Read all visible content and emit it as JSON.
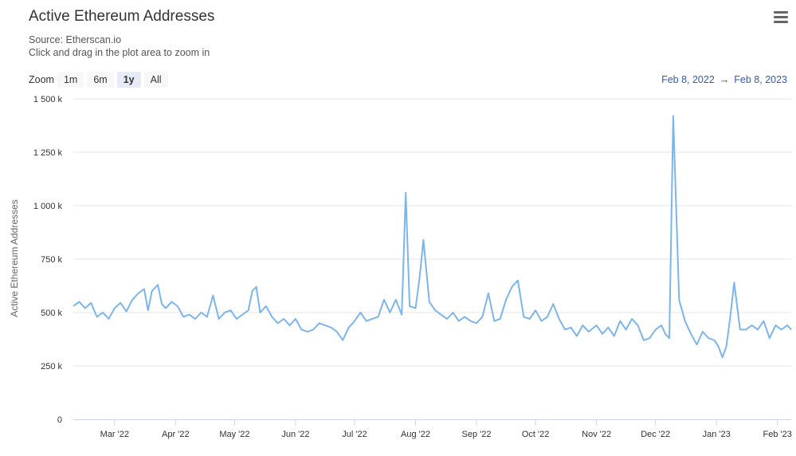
{
  "header": {
    "title": "Active Ethereum Addresses",
    "source": "Source: Etherscan.io",
    "hint": "Click and drag in the plot area to zoom in",
    "menu_icon": "hamburger-menu-icon"
  },
  "zoom": {
    "label": "Zoom",
    "buttons": [
      "1m",
      "6m",
      "1y",
      "All"
    ],
    "active": "1y"
  },
  "range": {
    "from": "Feb 8, 2022",
    "arrow": "→",
    "to": "Feb 8, 2023"
  },
  "colors": {
    "line": "#7cb5ec",
    "grid": "#e6e6e6",
    "axis": "#ccd6eb"
  },
  "chart_data": {
    "type": "line",
    "ylabel": "Active Ethereum Addresses",
    "ylim": [
      0,
      1500000
    ],
    "xlim": [
      "2022-02-08",
      "2023-02-08"
    ],
    "y_ticks": [
      {
        "value": 0,
        "label": "0"
      },
      {
        "value": 250000,
        "label": "250 k"
      },
      {
        "value": 500000,
        "label": "500 k"
      },
      {
        "value": 750000,
        "label": "750 k"
      },
      {
        "value": 1000000,
        "label": "1 000 k"
      },
      {
        "value": 1250000,
        "label": "1 250 k"
      },
      {
        "value": 1500000,
        "label": "1 500 k"
      }
    ],
    "x_ticks": [
      {
        "date": "2022-03-01",
        "label": "Mar '22"
      },
      {
        "date": "2022-04-01",
        "label": "Apr '22"
      },
      {
        "date": "2022-05-01",
        "label": "May '22"
      },
      {
        "date": "2022-06-01",
        "label": "Jun '22"
      },
      {
        "date": "2022-07-01",
        "label": "Jul '22"
      },
      {
        "date": "2022-08-01",
        "label": "Aug '22"
      },
      {
        "date": "2022-09-01",
        "label": "Sep '22"
      },
      {
        "date": "2022-10-01",
        "label": "Oct '22"
      },
      {
        "date": "2022-11-01",
        "label": "Nov '22"
      },
      {
        "date": "2022-12-01",
        "label": "Dec '22"
      },
      {
        "date": "2023-01-01",
        "label": "Jan '23"
      },
      {
        "date": "2023-02-01",
        "label": "Feb '23"
      }
    ],
    "series": [
      {
        "x": [
          "2022-02-08",
          "2022-02-11",
          "2022-02-14",
          "2022-02-17",
          "2022-02-20",
          "2022-02-23",
          "2022-02-26",
          "2022-03-01",
          "2022-03-04",
          "2022-03-07",
          "2022-03-10",
          "2022-03-13",
          "2022-03-16",
          "2022-03-18",
          "2022-03-20",
          "2022-03-23",
          "2022-03-25",
          "2022-03-27",
          "2022-03-30",
          "2022-04-02",
          "2022-04-05",
          "2022-04-08",
          "2022-04-11",
          "2022-04-14",
          "2022-04-17",
          "2022-04-20",
          "2022-04-23",
          "2022-04-26",
          "2022-04-29",
          "2022-05-02",
          "2022-05-05",
          "2022-05-08",
          "2022-05-10",
          "2022-05-12",
          "2022-05-14",
          "2022-05-17",
          "2022-05-20",
          "2022-05-23",
          "2022-05-26",
          "2022-05-29",
          "2022-06-01",
          "2022-06-04",
          "2022-06-07",
          "2022-06-10",
          "2022-06-13",
          "2022-06-16",
          "2022-06-19",
          "2022-06-22",
          "2022-06-25",
          "2022-06-28",
          "2022-07-01",
          "2022-07-04",
          "2022-07-07",
          "2022-07-10",
          "2022-07-13",
          "2022-07-16",
          "2022-07-19",
          "2022-07-22",
          "2022-07-25",
          "2022-07-27",
          "2022-07-29",
          "2022-08-01",
          "2022-08-03",
          "2022-08-05",
          "2022-08-08",
          "2022-08-11",
          "2022-08-14",
          "2022-08-17",
          "2022-08-20",
          "2022-08-23",
          "2022-08-26",
          "2022-08-29",
          "2022-09-01",
          "2022-09-04",
          "2022-09-07",
          "2022-09-10",
          "2022-09-13",
          "2022-09-16",
          "2022-09-19",
          "2022-09-22",
          "2022-09-25",
          "2022-09-28",
          "2022-10-01",
          "2022-10-04",
          "2022-10-07",
          "2022-10-10",
          "2022-10-13",
          "2022-10-16",
          "2022-10-19",
          "2022-10-22",
          "2022-10-25",
          "2022-10-28",
          "2022-11-01",
          "2022-11-04",
          "2022-11-07",
          "2022-11-10",
          "2022-11-13",
          "2022-11-16",
          "2022-11-19",
          "2022-11-22",
          "2022-11-25",
          "2022-11-28",
          "2022-12-01",
          "2022-12-04",
          "2022-12-06",
          "2022-12-08",
          "2022-12-10",
          "2022-12-13",
          "2022-12-16",
          "2022-12-19",
          "2022-12-22",
          "2022-12-25",
          "2022-12-28",
          "2022-12-31",
          "2023-01-02",
          "2023-01-04",
          "2023-01-06",
          "2023-01-08",
          "2023-01-10",
          "2023-01-13",
          "2023-01-16",
          "2023-01-19",
          "2023-01-22",
          "2023-01-25",
          "2023-01-28",
          "2023-01-31",
          "2023-02-03",
          "2023-02-06",
          "2023-02-08"
        ],
        "y": [
          530000,
          550000,
          520000,
          545000,
          480000,
          500000,
          470000,
          520000,
          545000,
          505000,
          560000,
          590000,
          610000,
          510000,
          600000,
          630000,
          540000,
          520000,
          550000,
          530000,
          480000,
          490000,
          470000,
          500000,
          480000,
          580000,
          470000,
          500000,
          510000,
          470000,
          490000,
          510000,
          600000,
          620000,
          500000,
          530000,
          480000,
          450000,
          470000,
          440000,
          470000,
          420000,
          410000,
          420000,
          450000,
          440000,
          430000,
          410000,
          370000,
          430000,
          460000,
          500000,
          460000,
          470000,
          480000,
          560000,
          500000,
          560000,
          490000,
          1060000,
          530000,
          520000,
          660000,
          840000,
          550000,
          510000,
          490000,
          470000,
          500000,
          460000,
          480000,
          460000,
          450000,
          480000,
          590000,
          460000,
          470000,
          560000,
          620000,
          650000,
          480000,
          470000,
          510000,
          460000,
          480000,
          540000,
          470000,
          420000,
          430000,
          390000,
          440000,
          410000,
          440000,
          400000,
          430000,
          390000,
          460000,
          420000,
          470000,
          440000,
          370000,
          380000,
          420000,
          440000,
          400000,
          380000,
          1420000,
          560000,
          460000,
          400000,
          350000,
          410000,
          380000,
          370000,
          340000,
          290000,
          340000,
          480000,
          640000,
          420000,
          420000,
          440000,
          420000,
          460000,
          380000,
          440000,
          420000,
          440000,
          420000
        ]
      }
    ]
  }
}
